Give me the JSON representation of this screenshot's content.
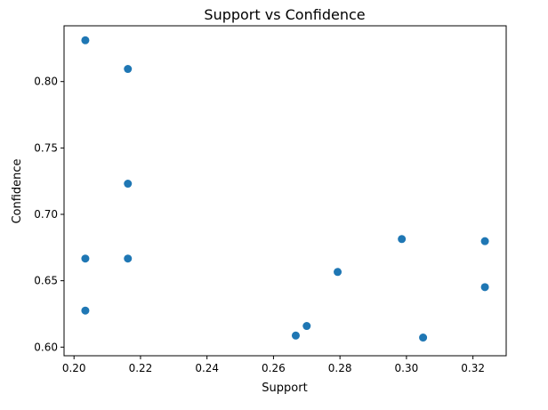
{
  "chart_data": {
    "type": "scatter",
    "title": "Support vs Confidence",
    "xlabel": "Support",
    "ylabel": "Confidence",
    "xlim": [
      0.197,
      0.33
    ],
    "ylim": [
      0.5935,
      0.842
    ],
    "xticks": [
      0.2,
      0.22,
      0.24,
      0.26,
      0.28,
      0.3,
      0.32
    ],
    "xtick_labels": [
      "0.20",
      "0.22",
      "0.24",
      "0.26",
      "0.28",
      "0.30",
      "0.32"
    ],
    "yticks": [
      0.6,
      0.65,
      0.7,
      0.75,
      0.8
    ],
    "ytick_labels": [
      "0.60",
      "0.65",
      "0.70",
      "0.75",
      "0.80"
    ],
    "grid": false,
    "marker_color": "#1f77b4",
    "points": [
      {
        "x": 0.2034,
        "y": 0.8311
      },
      {
        "x": 0.2162,
        "y": 0.8095
      },
      {
        "x": 0.2162,
        "y": 0.7231
      },
      {
        "x": 0.2034,
        "y": 0.6667
      },
      {
        "x": 0.2162,
        "y": 0.6667
      },
      {
        "x": 0.2034,
        "y": 0.6275
      },
      {
        "x": 0.2667,
        "y": 0.6087
      },
      {
        "x": 0.27,
        "y": 0.6159
      },
      {
        "x": 0.2793,
        "y": 0.6566
      },
      {
        "x": 0.2986,
        "y": 0.6814
      },
      {
        "x": 0.305,
        "y": 0.6072
      },
      {
        "x": 0.3236,
        "y": 0.6798
      },
      {
        "x": 0.3236,
        "y": 0.6452
      }
    ]
  }
}
